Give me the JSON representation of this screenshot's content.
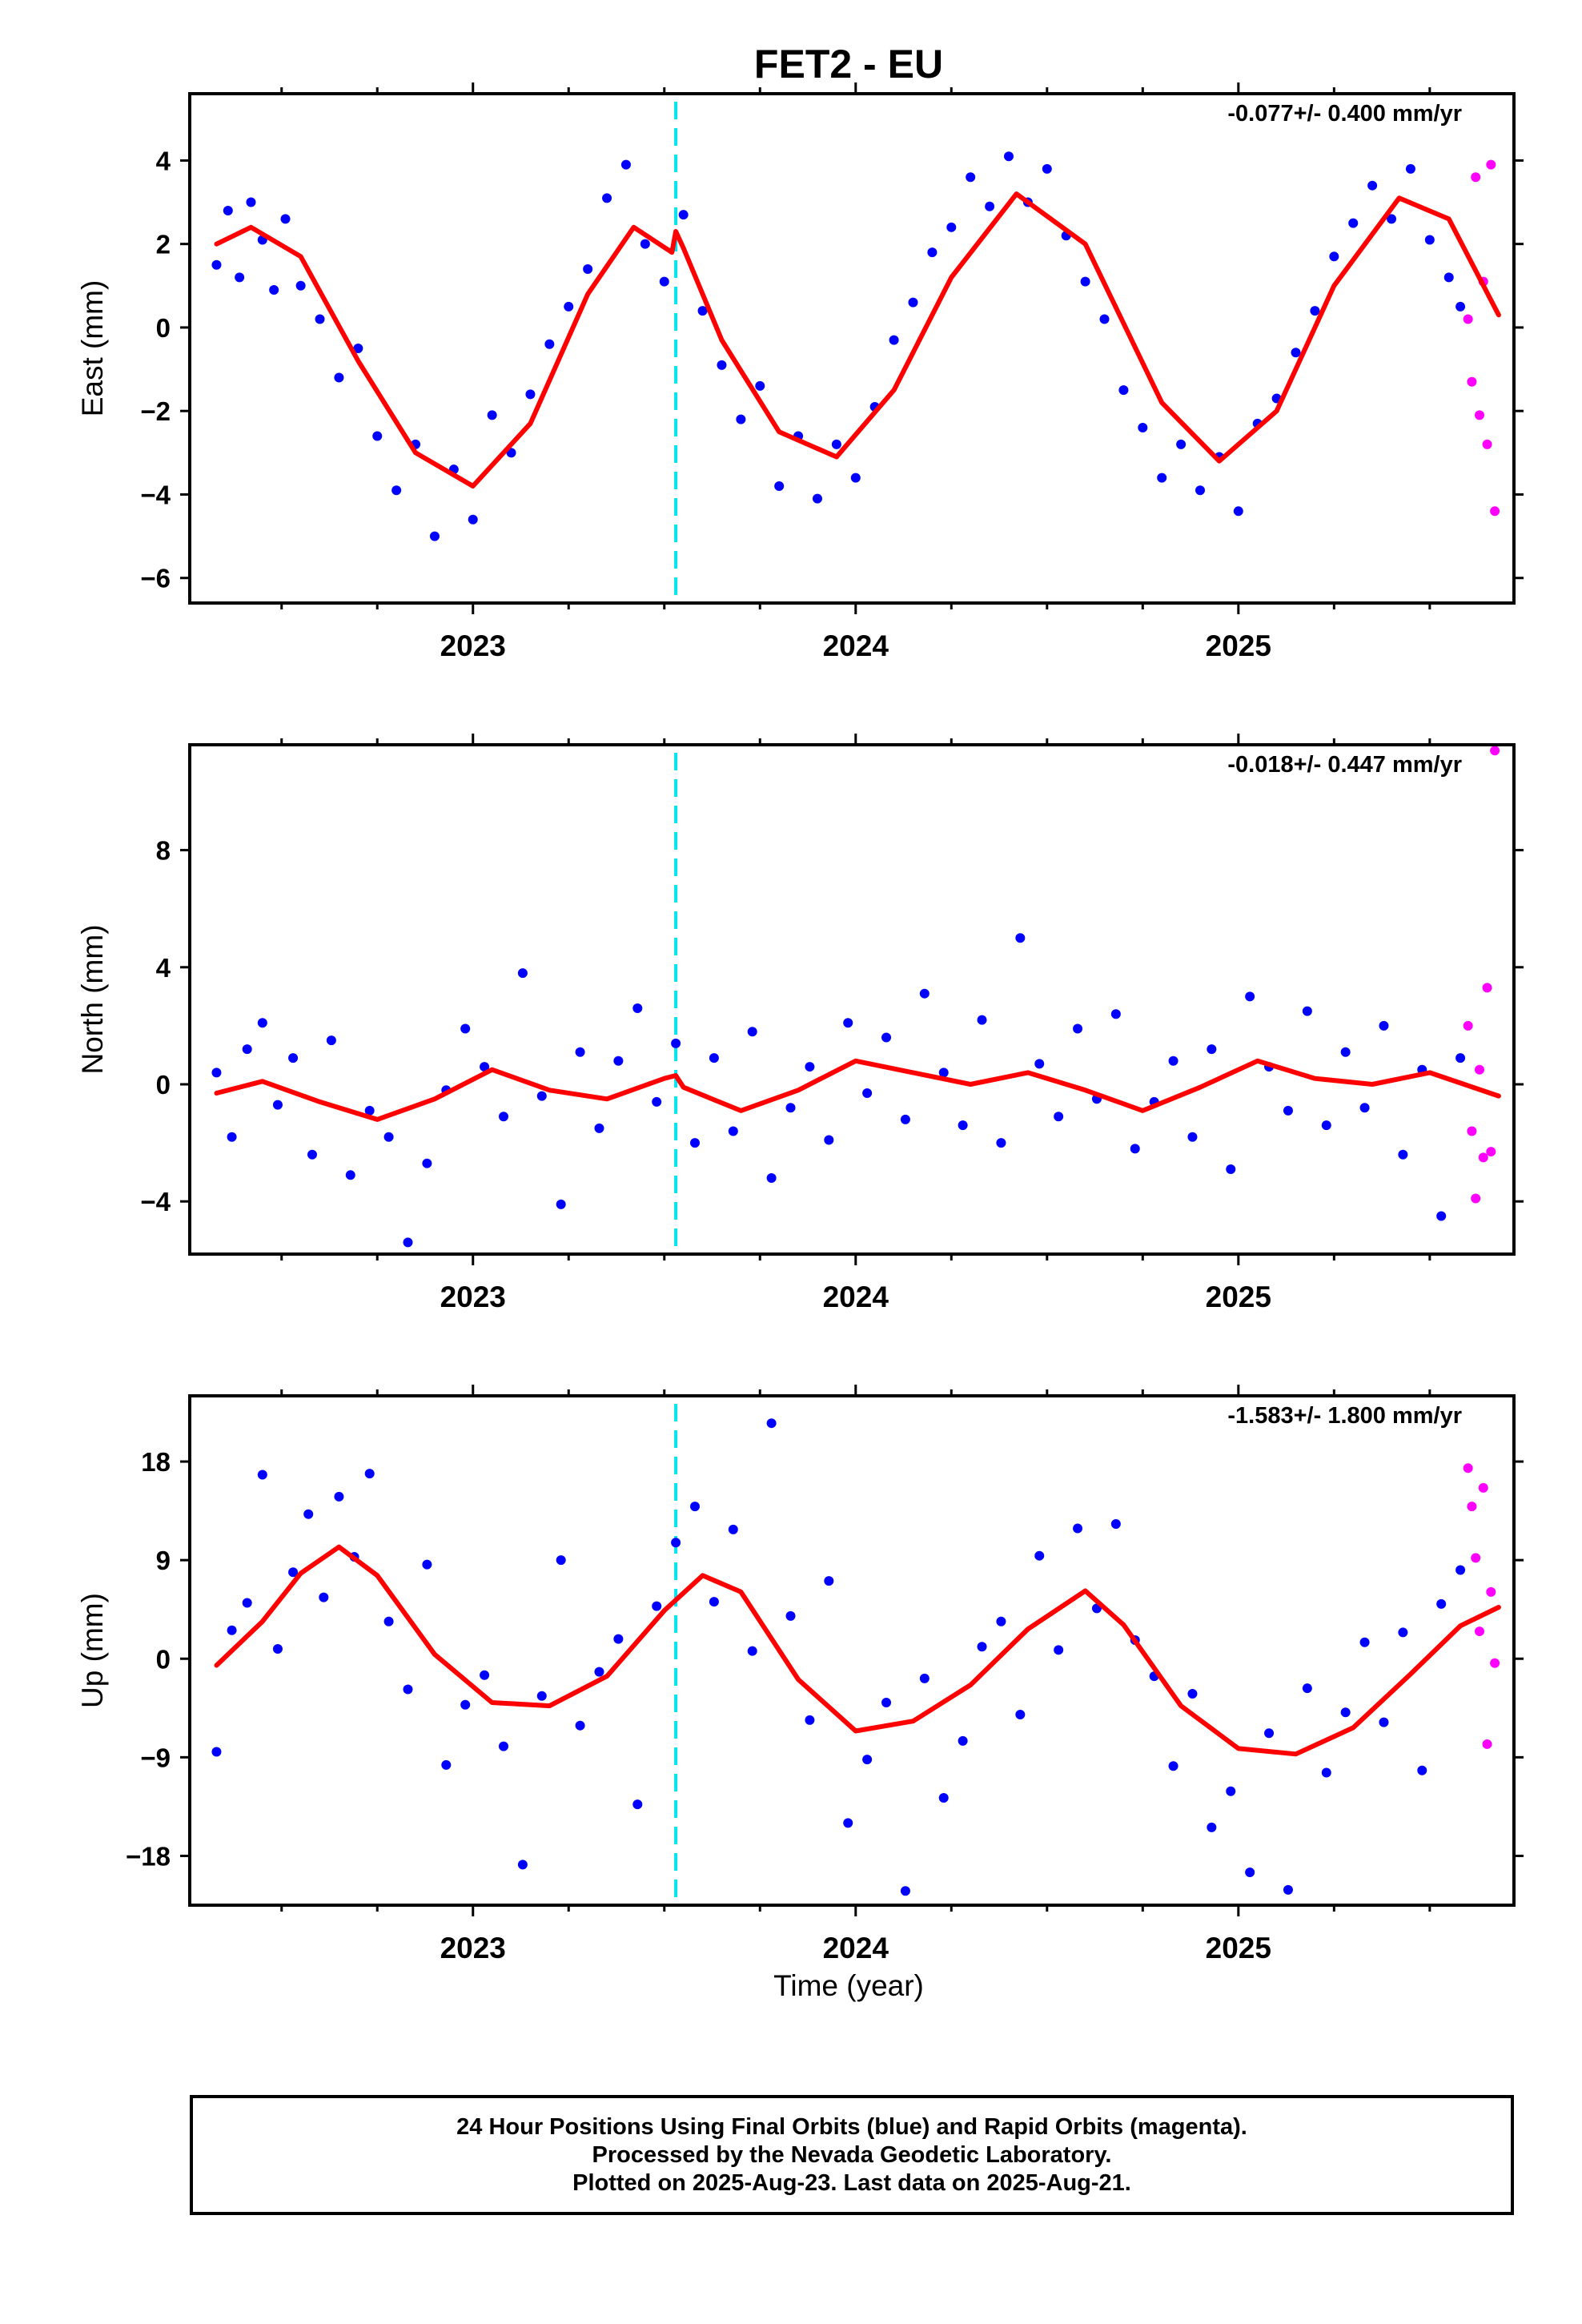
{
  "title": "FET2 - EU",
  "xlabel": "Time (year)",
  "footer": {
    "line1": "24 Hour Positions Using Final Orbits (blue) and Rapid Orbits (magenta).",
    "line2": "Processed by the Nevada Geodetic Laboratory.",
    "line3": "Plotted on 2025-Aug-23. Last data on 2025-Aug-21."
  },
  "colors": {
    "final_orbits": "#0000ff",
    "rapid_orbits": "#ff00ff",
    "model": "#ff0000",
    "offset_marker": "#00e5ee"
  },
  "chart_data": [
    {
      "type": "scatter",
      "component": "East",
      "ylabel": "East (mm)",
      "rate_label": "-0.077+/- 0.400 mm/yr",
      "xlim": [
        2022.26,
        2025.72
      ],
      "ylim": [
        -6.6,
        5.6
      ],
      "yticks": [
        -6,
        -4,
        -2,
        0,
        2,
        4
      ],
      "xticks": [
        2023,
        2024,
        2025
      ],
      "offset_epoch": 2023.53,
      "model_curve": {
        "x": [
          2022.33,
          2022.42,
          2022.55,
          2022.7,
          2022.85,
          2023.0,
          2023.15,
          2023.3,
          2023.42,
          2023.52,
          2023.53,
          2023.55,
          2023.65,
          2023.8,
          2023.95,
          2024.1,
          2024.25,
          2024.42,
          2024.6,
          2024.8,
          2024.95,
          2025.1,
          2025.25,
          2025.42,
          2025.55,
          2025.68
        ],
        "y": [
          2.0,
          2.4,
          1.7,
          -0.8,
          -3.0,
          -3.8,
          -2.3,
          0.8,
          2.4,
          1.8,
          2.3,
          1.9,
          -0.3,
          -2.5,
          -3.1,
          -1.5,
          1.2,
          3.2,
          2.0,
          -1.8,
          -3.2,
          -2.0,
          1.0,
          3.1,
          2.6,
          0.3
        ]
      },
      "final_orbits": {
        "x": [
          2022.33,
          2022.36,
          2022.39,
          2022.42,
          2022.45,
          2022.48,
          2022.51,
          2022.55,
          2022.6,
          2022.65,
          2022.7,
          2022.75,
          2022.8,
          2022.85,
          2022.9,
          2022.95,
          2023.0,
          2023.05,
          2023.1,
          2023.15,
          2023.2,
          2023.25,
          2023.3,
          2023.35,
          2023.4,
          2023.45,
          2023.5,
          2023.55,
          2023.6,
          2023.65,
          2023.7,
          2023.75,
          2023.8,
          2023.85,
          2023.9,
          2023.95,
          2024.0,
          2024.05,
          2024.1,
          2024.15,
          2024.2,
          2024.25,
          2024.3,
          2024.35,
          2024.4,
          2024.45,
          2024.5,
          2024.55,
          2024.6,
          2024.65,
          2024.7,
          2024.75,
          2024.8,
          2024.85,
          2024.9,
          2024.95,
          2025.0,
          2025.05,
          2025.1,
          2025.15,
          2025.2,
          2025.25,
          2025.3,
          2025.35,
          2025.4,
          2025.45,
          2025.5,
          2025.55,
          2025.58
        ],
        "y": [
          1.5,
          2.8,
          1.2,
          3.0,
          2.1,
          0.9,
          2.6,
          1.0,
          0.2,
          -1.2,
          -0.5,
          -2.6,
          -3.9,
          -2.8,
          -5.0,
          -3.4,
          -4.6,
          -2.1,
          -3.0,
          -1.6,
          -0.4,
          0.5,
          1.4,
          3.1,
          3.9,
          2.0,
          1.1,
          2.7,
          0.4,
          -0.9,
          -2.2,
          -1.4,
          -3.8,
          -2.6,
          -4.1,
          -2.8,
          -3.6,
          -1.9,
          -0.3,
          0.6,
          1.8,
          2.4,
          3.6,
          2.9,
          4.1,
          3.0,
          3.8,
          2.2,
          1.1,
          0.2,
          -1.5,
          -2.4,
          -3.6,
          -2.8,
          -3.9,
          -3.1,
          -4.4,
          -2.3,
          -1.7,
          -0.6,
          0.4,
          1.7,
          2.5,
          3.4,
          2.6,
          3.8,
          2.1,
          1.2,
          0.5
        ]
      },
      "rapid_orbits": {
        "x": [
          2025.6,
          2025.61,
          2025.62,
          2025.63,
          2025.64,
          2025.65,
          2025.66,
          2025.67
        ],
        "y": [
          0.2,
          -1.3,
          3.6,
          -2.1,
          1.1,
          -2.8,
          3.9,
          -4.4
        ]
      }
    },
    {
      "type": "scatter",
      "component": "North",
      "ylabel": "North (mm)",
      "rate_label": "-0.018+/- 0.447 mm/yr",
      "xlim": [
        2022.26,
        2025.72
      ],
      "ylim": [
        -5.8,
        11.6
      ],
      "yticks": [
        -4,
        0,
        4,
        8
      ],
      "xticks": [
        2023,
        2024,
        2025
      ],
      "offset_epoch": 2023.53,
      "model_curve": {
        "x": [
          2022.33,
          2022.45,
          2022.6,
          2022.75,
          2022.9,
          2023.05,
          2023.2,
          2023.35,
          2023.5,
          2023.53,
          2023.55,
          2023.7,
          2023.85,
          2024.0,
          2024.15,
          2024.3,
          2024.45,
          2024.6,
          2024.75,
          2024.9,
          2025.05,
          2025.2,
          2025.35,
          2025.5,
          2025.68
        ],
        "y": [
          -0.3,
          0.1,
          -0.6,
          -1.2,
          -0.5,
          0.5,
          -0.2,
          -0.5,
          0.2,
          0.3,
          -0.1,
          -0.9,
          -0.2,
          0.8,
          0.4,
          0.0,
          0.4,
          -0.2,
          -0.9,
          -0.1,
          0.8,
          0.2,
          0.0,
          0.4,
          -0.4
        ]
      },
      "final_orbits": {
        "x": [
          2022.33,
          2022.37,
          2022.41,
          2022.45,
          2022.49,
          2022.53,
          2022.58,
          2022.63,
          2022.68,
          2022.73,
          2022.78,
          2022.83,
          2022.88,
          2022.93,
          2022.98,
          2023.03,
          2023.08,
          2023.13,
          2023.18,
          2023.23,
          2023.28,
          2023.33,
          2023.38,
          2023.43,
          2023.48,
          2023.53,
          2023.58,
          2023.63,
          2023.68,
          2023.73,
          2023.78,
          2023.83,
          2023.88,
          2023.93,
          2023.98,
          2024.03,
          2024.08,
          2024.13,
          2024.18,
          2024.23,
          2024.28,
          2024.33,
          2024.38,
          2024.43,
          2024.48,
          2024.53,
          2024.58,
          2024.63,
          2024.68,
          2024.73,
          2024.78,
          2024.83,
          2024.88,
          2024.93,
          2024.98,
          2025.03,
          2025.08,
          2025.13,
          2025.18,
          2025.23,
          2025.28,
          2025.33,
          2025.38,
          2025.43,
          2025.48,
          2025.53,
          2025.58
        ],
        "y": [
          0.4,
          -1.8,
          1.2,
          2.1,
          -0.7,
          0.9,
          -2.4,
          1.5,
          -3.1,
          -0.9,
          -1.8,
          -5.4,
          -2.7,
          -0.2,
          1.9,
          0.6,
          -1.1,
          3.8,
          -0.4,
          -4.1,
          1.1,
          -1.5,
          0.8,
          2.6,
          -0.6,
          1.4,
          -2.0,
          0.9,
          -1.6,
          1.8,
          -3.2,
          -0.8,
          0.6,
          -1.9,
          2.1,
          -0.3,
          1.6,
          -1.2,
          3.1,
          0.4,
          -1.4,
          2.2,
          -2.0,
          5.0,
          0.7,
          -1.1,
          1.9,
          -0.5,
          2.4,
          -2.2,
          -0.6,
          0.8,
          -1.8,
          1.2,
          -2.9,
          3.0,
          0.6,
          -0.9,
          2.5,
          -1.4,
          1.1,
          -0.8,
          2.0,
          -2.4,
          0.5,
          -4.5,
          0.9
        ]
      },
      "rapid_orbits": {
        "x": [
          2025.6,
          2025.61,
          2025.62,
          2025.63,
          2025.64,
          2025.65,
          2025.66,
          2025.67
        ],
        "y": [
          2.0,
          -1.6,
          -3.9,
          0.5,
          -2.5,
          3.3,
          -2.3,
          11.4
        ]
      }
    },
    {
      "type": "scatter",
      "component": "Up",
      "ylabel": "Up (mm)",
      "rate_label": "-1.583+/- 1.800 mm/yr",
      "xlim": [
        2022.26,
        2025.72
      ],
      "ylim": [
        -22.5,
        24.0
      ],
      "yticks": [
        -18,
        -9,
        0,
        9,
        18
      ],
      "xticks": [
        2023,
        2024,
        2025
      ],
      "offset_epoch": 2023.53,
      "model_curve": {
        "x": [
          2022.33,
          2022.45,
          2022.55,
          2022.65,
          2022.75,
          2022.9,
          2023.05,
          2023.2,
          2023.35,
          2023.5,
          2023.6,
          2023.7,
          2023.85,
          2024.0,
          2024.15,
          2024.3,
          2024.45,
          2024.6,
          2024.7,
          2024.85,
          2025.0,
          2025.15,
          2025.3,
          2025.45,
          2025.58,
          2025.68
        ],
        "y": [
          -0.6,
          3.4,
          7.8,
          10.2,
          7.6,
          0.4,
          -4.0,
          -4.3,
          -1.6,
          4.4,
          7.6,
          6.1,
          -1.9,
          -6.6,
          -5.7,
          -2.4,
          2.7,
          6.2,
          3.1,
          -4.3,
          -8.2,
          -8.7,
          -6.3,
          -1.4,
          3.0,
          4.7
        ]
      },
      "final_orbits": {
        "x": [
          2022.33,
          2022.37,
          2022.41,
          2022.45,
          2022.49,
          2022.53,
          2022.57,
          2022.61,
          2022.65,
          2022.69,
          2022.73,
          2022.78,
          2022.83,
          2022.88,
          2022.93,
          2022.98,
          2023.03,
          2023.08,
          2023.13,
          2023.18,
          2023.23,
          2023.28,
          2023.33,
          2023.38,
          2023.43,
          2023.48,
          2023.53,
          2023.58,
          2023.63,
          2023.68,
          2023.73,
          2023.78,
          2023.83,
          2023.88,
          2023.93,
          2023.98,
          2024.03,
          2024.08,
          2024.13,
          2024.18,
          2024.23,
          2024.28,
          2024.33,
          2024.38,
          2024.43,
          2024.48,
          2024.53,
          2024.58,
          2024.63,
          2024.68,
          2024.73,
          2024.78,
          2024.83,
          2024.88,
          2024.93,
          2024.98,
          2025.03,
          2025.08,
          2025.13,
          2025.18,
          2025.23,
          2025.28,
          2025.33,
          2025.38,
          2025.43,
          2025.48,
          2025.53,
          2025.58
        ],
        "y": [
          -8.5,
          2.6,
          5.1,
          16.8,
          0.9,
          7.9,
          13.2,
          5.6,
          14.8,
          9.3,
          16.9,
          3.4,
          -2.8,
          8.6,
          -9.7,
          -4.2,
          -1.5,
          -8.0,
          -18.8,
          -3.4,
          9.0,
          -6.1,
          -1.2,
          1.8,
          -13.3,
          4.8,
          10.6,
          13.9,
          5.2,
          11.8,
          0.7,
          21.5,
          3.9,
          -5.6,
          7.1,
          -15.0,
          -9.2,
          -4.0,
          -21.2,
          -1.8,
          -12.7,
          -7.5,
          1.1,
          3.4,
          -5.1,
          9.4,
          0.8,
          11.9,
          4.6,
          12.3,
          1.7,
          -1.6,
          -9.8,
          -3.2,
          -15.4,
          -12.1,
          -19.5,
          -6.8,
          -21.1,
          -2.7,
          -10.4,
          -4.9,
          1.5,
          -5.8,
          2.4,
          -10.2,
          5.0,
          8.1
        ]
      },
      "rapid_orbits": {
        "x": [
          2025.6,
          2025.61,
          2025.62,
          2025.63,
          2025.64,
          2025.65,
          2025.66,
          2025.67
        ],
        "y": [
          17.4,
          13.9,
          9.2,
          2.5,
          15.6,
          -7.8,
          6.1,
          -0.4
        ]
      }
    }
  ]
}
